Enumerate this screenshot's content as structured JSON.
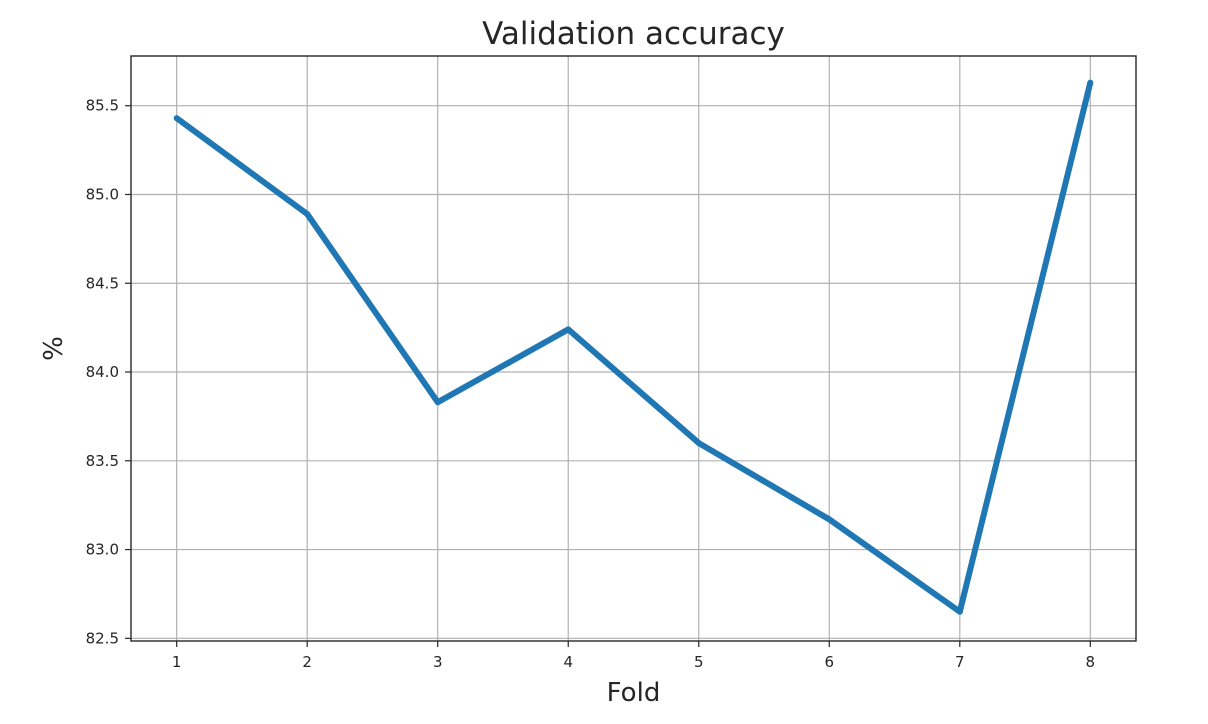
{
  "chart_data": {
    "type": "line",
    "title": "Validation accuracy",
    "xlabel": "Fold",
    "ylabel": "%",
    "x": [
      1,
      2,
      3,
      4,
      5,
      6,
      7,
      8
    ],
    "series": [
      {
        "values": [
          85.43,
          84.89,
          83.83,
          84.24,
          83.6,
          83.17,
          82.65,
          85.63
        ],
        "color": "#1f77b4"
      }
    ],
    "xticks": [
      "1",
      "2",
      "3",
      "4",
      "5",
      "6",
      "7",
      "8"
    ],
    "yticks": [
      "82.5",
      "83.0",
      "83.5",
      "84.0",
      "84.5",
      "85.0",
      "85.5"
    ],
    "xlim": [
      0.65,
      8.35
    ],
    "ylim": [
      82.485,
      85.78
    ],
    "grid": true
  }
}
